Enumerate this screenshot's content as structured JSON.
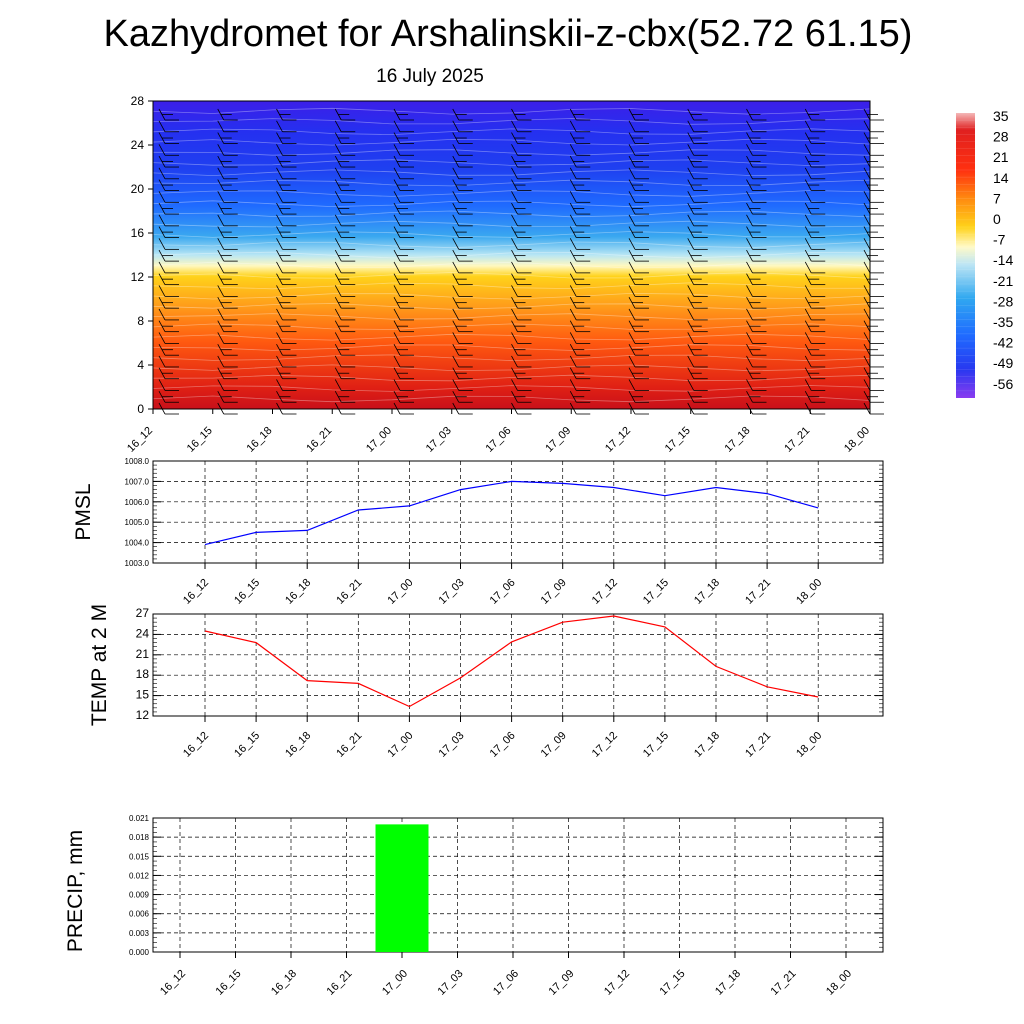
{
  "header": {
    "title": "Kazhydromet for Arshalinskii-z-cbx(52.72 61.15)",
    "date": "16 July 2025"
  },
  "chart_data": [
    {
      "type": "heatmap",
      "name": "vertical-cross-section",
      "x_tick_labels": [
        "16_12",
        "16_15",
        "16_18",
        "16_21",
        "17_00",
        "17_03",
        "17_06",
        "17_09",
        "17_12",
        "17_15",
        "17_18",
        "17_21",
        "18_00"
      ],
      "y_tick_labels": [
        "0",
        "4",
        "8",
        "12",
        "16",
        "20",
        "24",
        "28"
      ],
      "ylim": [
        0,
        28
      ],
      "colorbar_labels": [
        "35",
        "28",
        "21",
        "14",
        "7",
        "0",
        "-7",
        "-14",
        "-21",
        "-28",
        "-35",
        "-42",
        "-49",
        "-56"
      ],
      "colors": {
        "top": "#3c1fe8",
        "upper": "#1f4bff",
        "mid_blue": "#3aa8f0",
        "pale": "#fff8c0",
        "yellow": "#ffd21a",
        "orange": "#ff7a10",
        "red": "#e82010",
        "bottom": "#c8101a"
      },
      "has_wind_barbs": true
    },
    {
      "type": "line",
      "name": "pmsl",
      "ylabel": "PMSL",
      "x": [
        "16_12",
        "16_15",
        "16_18",
        "16_21",
        "17_00",
        "17_03",
        "17_06",
        "17_09",
        "17_12",
        "17_15",
        "17_18",
        "17_21",
        "18_00"
      ],
      "values": [
        1003.9,
        1004.5,
        1004.6,
        1005.6,
        1005.8,
        1006.6,
        1007.0,
        1006.9,
        1006.7,
        1006.3,
        1006.7,
        1006.4,
        1005.7
      ],
      "ylim": [
        1003.0,
        1008.0
      ],
      "y_tick_labels": [
        "1003.0",
        "1004.0",
        "1005.0",
        "1006.0",
        "1007.0",
        "1008.0"
      ],
      "color": "#0000ff",
      "grid": true
    },
    {
      "type": "line",
      "name": "temp-2m",
      "ylabel": "TEMP at 2 M",
      "x": [
        "16_12",
        "16_15",
        "16_18",
        "16_21",
        "17_00",
        "17_03",
        "17_06",
        "17_09",
        "17_12",
        "17_15",
        "17_18",
        "17_21",
        "18_00"
      ],
      "values": [
        24.5,
        22.8,
        17.2,
        16.8,
        13.4,
        17.6,
        22.9,
        25.8,
        26.7,
        25.1,
        19.3,
        16.3,
        14.8
      ],
      "ylim": [
        12,
        27
      ],
      "y_tick_labels": [
        "12",
        "15",
        "18",
        "21",
        "24",
        "27"
      ],
      "color": "#ff0000",
      "grid": true
    },
    {
      "type": "bar",
      "name": "precip",
      "ylabel": "PRECIP, mm",
      "categories": [
        "16_12",
        "16_15",
        "16_18",
        "16_21",
        "17_00",
        "17_03",
        "17_06",
        "17_09",
        "17_12",
        "17_15",
        "17_18",
        "17_21",
        "18_00"
      ],
      "values": [
        0,
        0,
        0,
        0,
        0.02,
        0,
        0,
        0,
        0,
        0,
        0,
        0,
        0
      ],
      "ylim": [
        0,
        0.021
      ],
      "y_tick_labels": [
        "0.000",
        "0.003",
        "0.006",
        "0.009",
        "0.012",
        "0.015",
        "0.018",
        "0.021"
      ],
      "color": "#00ff00",
      "grid": true
    }
  ]
}
